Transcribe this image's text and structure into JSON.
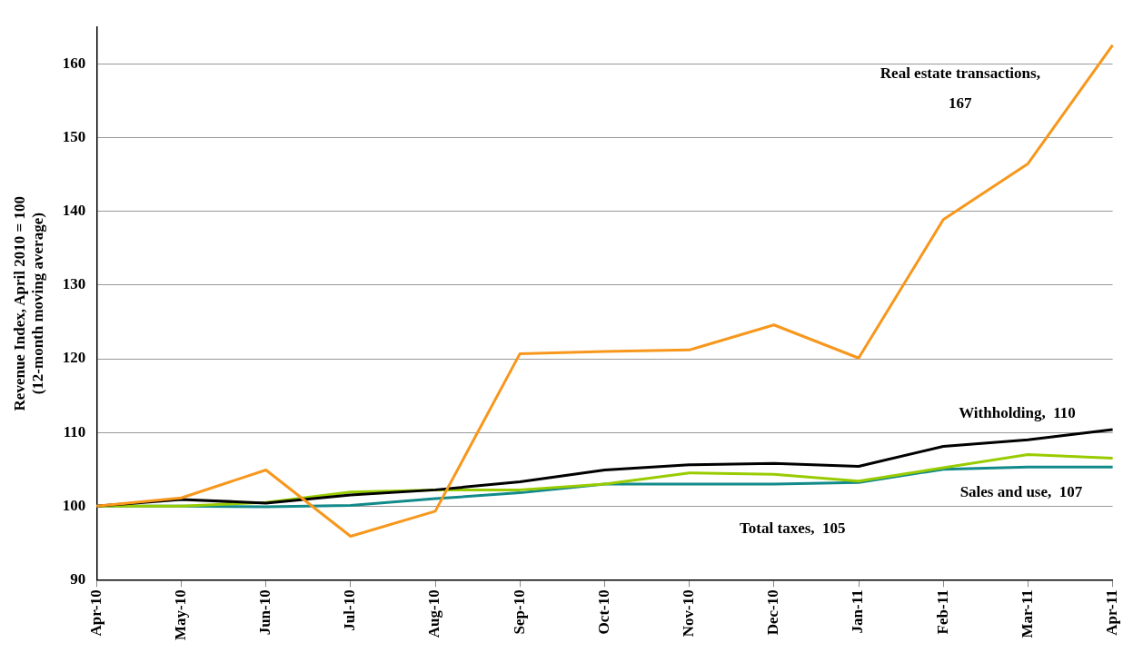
{
  "chart_data": {
    "type": "line",
    "ylabel": "Revenue Index, April 2010 = 100\n(12-month moving average)",
    "categories": [
      "Apr-10",
      "May-10",
      "Jun-10",
      "Jul-10",
      "Aug-10",
      "Sep-10",
      "Oct-10",
      "Nov-10",
      "Dec-10",
      "Jan-11",
      "Feb-11",
      "Mar-11",
      "Apr-11"
    ],
    "series": [
      {
        "color": "#f7971c",
        "values": [
          100,
          101.1,
          104.9,
          95.9,
          99.3,
          120.7,
          121,
          121.2,
          124.6,
          120.1,
          138.9,
          146.5,
          162.6
        ]
      },
      {
        "color": "#000000",
        "values": [
          100,
          100.9,
          100.4,
          101.5,
          102.2,
          103.3,
          104.9,
          105.6,
          105.8,
          105.4,
          108.1,
          109,
          110.4
        ]
      },
      {
        "color": "#99cc00",
        "values": [
          100,
          100,
          100.5,
          101.9,
          102.2,
          102.2,
          103,
          104.5,
          104.3,
          103.4,
          105.2,
          107,
          106.5
        ]
      },
      {
        "color": "#138a8a",
        "values": [
          100,
          100,
          99.9,
          100.1,
          101,
          101.8,
          103,
          103,
          103,
          103.2,
          105,
          105.3,
          105.3
        ]
      }
    ],
    "ylim": [
      90,
      165
    ],
    "yticks": [
      90,
      100,
      110,
      120,
      130,
      140,
      150,
      160
    ],
    "grid": "y",
    "marker": "none",
    "line_style": "solid",
    "annotations": [
      "Real estate transactions,\n167",
      "Withholding,  110",
      "Sales and use,  107",
      "Total taxes,  105"
    ]
  }
}
